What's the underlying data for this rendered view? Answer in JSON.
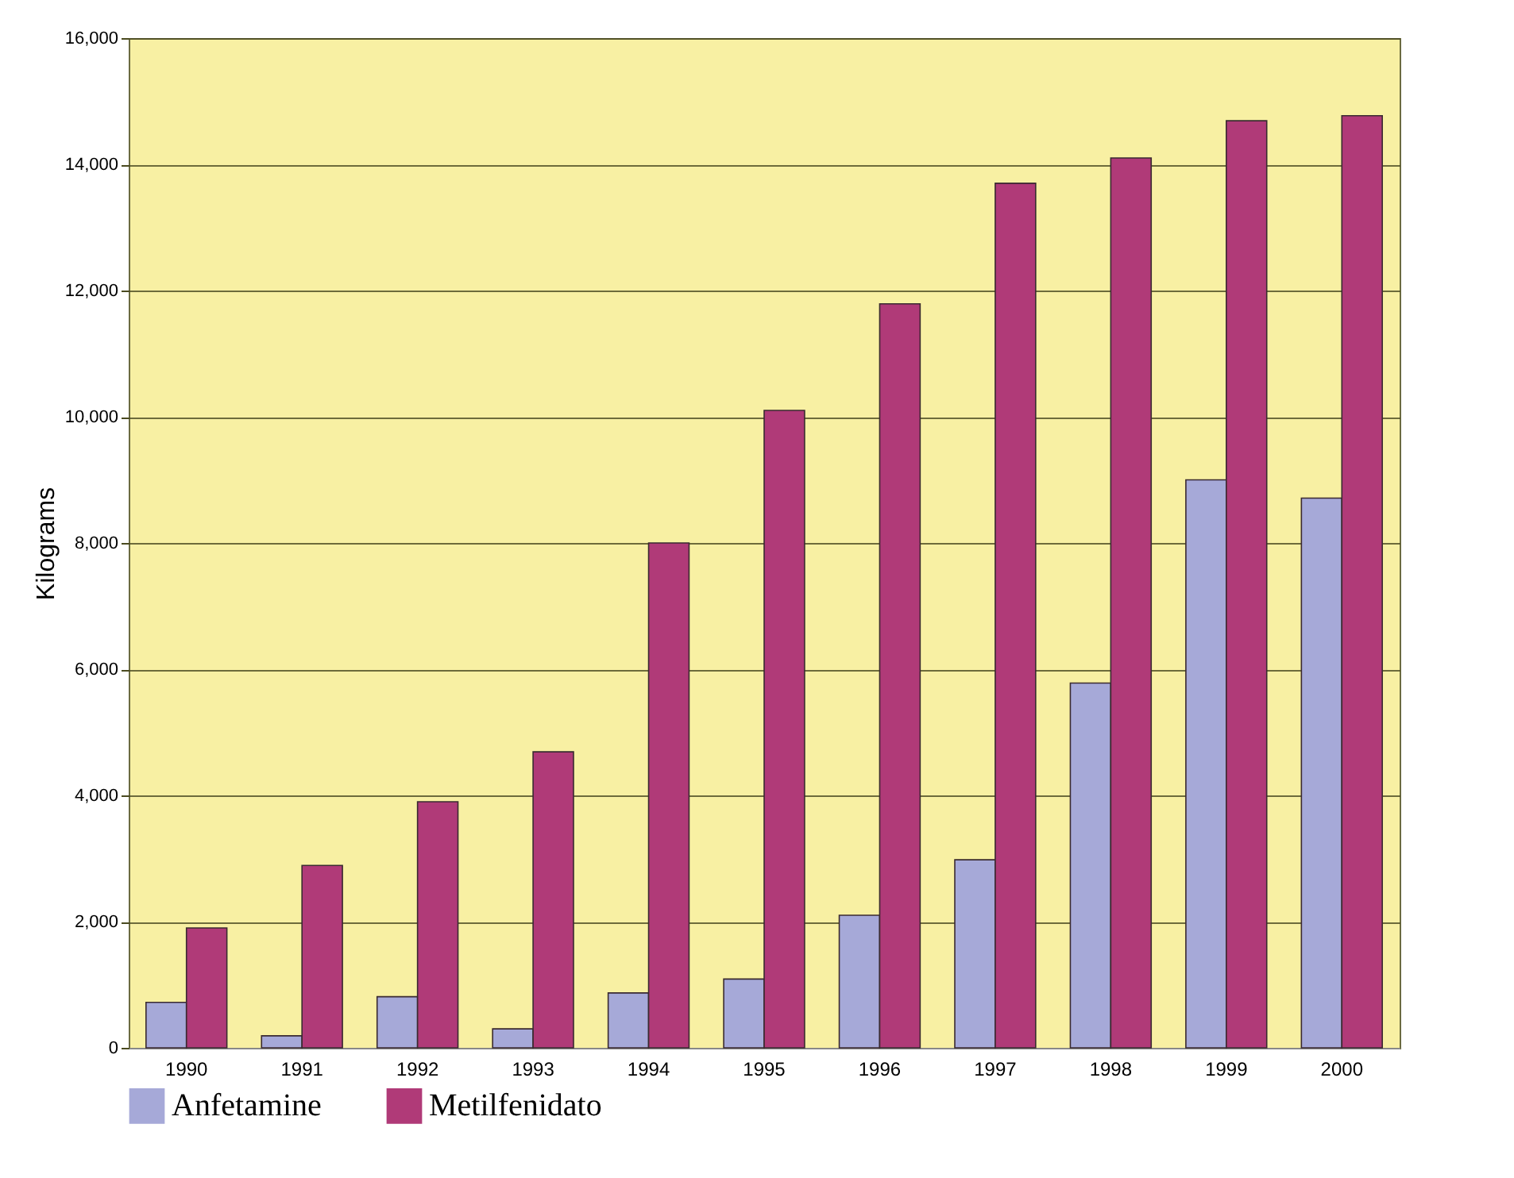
{
  "chart_data": {
    "type": "bar",
    "ylabel": "Kilograms",
    "categories": [
      "1990",
      "1991",
      "1992",
      "1993",
      "1994",
      "1995",
      "1996",
      "1997",
      "1998",
      "1999",
      "2000"
    ],
    "series": [
      {
        "name": "Anfetamine",
        "color": "#a6a9d8",
        "values": [
          720,
          190,
          810,
          300,
          870,
          1090,
          2100,
          2980,
          5780,
          9000,
          8710
        ]
      },
      {
        "name": "Metilfenidato",
        "color": "#b03a78",
        "values": [
          1900,
          2890,
          3900,
          4690,
          8000,
          10100,
          11790,
          13700,
          14100,
          14690,
          14770
        ]
      }
    ],
    "ylim": [
      0,
      16000
    ],
    "yticks": [
      0,
      {
        "value": 2000,
        "label": "2,000"
      },
      {
        "value": 4000,
        "label": "4,000"
      },
      {
        "value": 6000,
        "label": "6,000"
      },
      {
        "value": 8000,
        "label": "8,000"
      },
      {
        "value": 10000,
        "label": "10,000"
      },
      {
        "value": 12000,
        "label": "12,000"
      },
      {
        "value": 14000,
        "label": "14,000"
      },
      {
        "value": 16000,
        "label": "16,000"
      }
    ],
    "grid": "y",
    "legend": "bottom"
  }
}
